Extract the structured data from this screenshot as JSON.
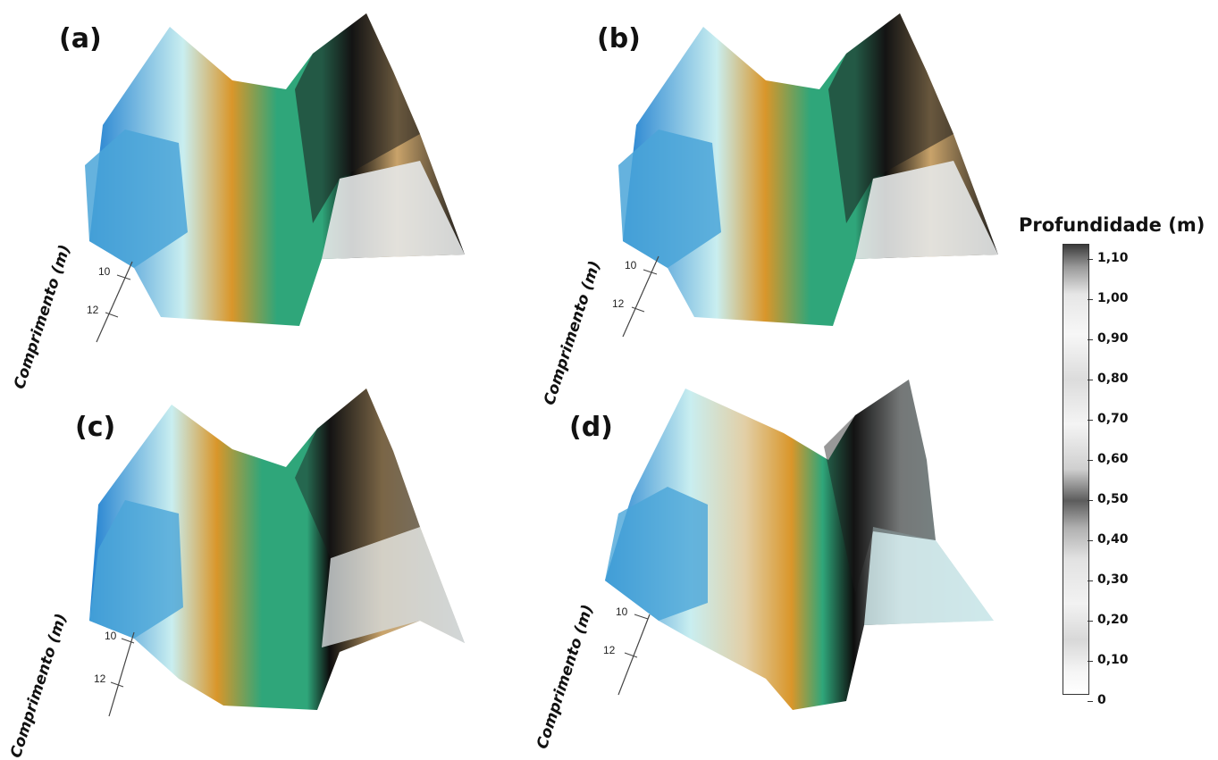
{
  "panels": [
    {
      "label": "(a)",
      "axis_title": "Comprimento (m)",
      "ticks": [
        "10",
        "12"
      ]
    },
    {
      "label": "(b)",
      "axis_title": "Comprimento (m)",
      "ticks": [
        "10",
        "12"
      ]
    },
    {
      "label": "(c)",
      "axis_title": "Comprimento (m)",
      "ticks": [
        "10",
        "12"
      ]
    },
    {
      "label": "(d)",
      "axis_title": "Comprimento (m)",
      "ticks": [
        "10",
        "12"
      ]
    }
  ],
  "legend": {
    "title": "Profundidade (m)",
    "ticks": [
      "1,10",
      "1,00",
      "0,90",
      "0,80",
      "0,70",
      "0,60",
      "0,50",
      "0,40",
      "0,30",
      "0,20",
      "0,10",
      "0"
    ]
  },
  "colors": {
    "teal": "#2fa67a",
    "blue": "#1f7fd0",
    "light_cyan": "#c9eef0",
    "orange": "#d9962a",
    "black": "#0d0d0d",
    "grey": "#bfc4c4",
    "tan": "#e2cfa6"
  }
}
